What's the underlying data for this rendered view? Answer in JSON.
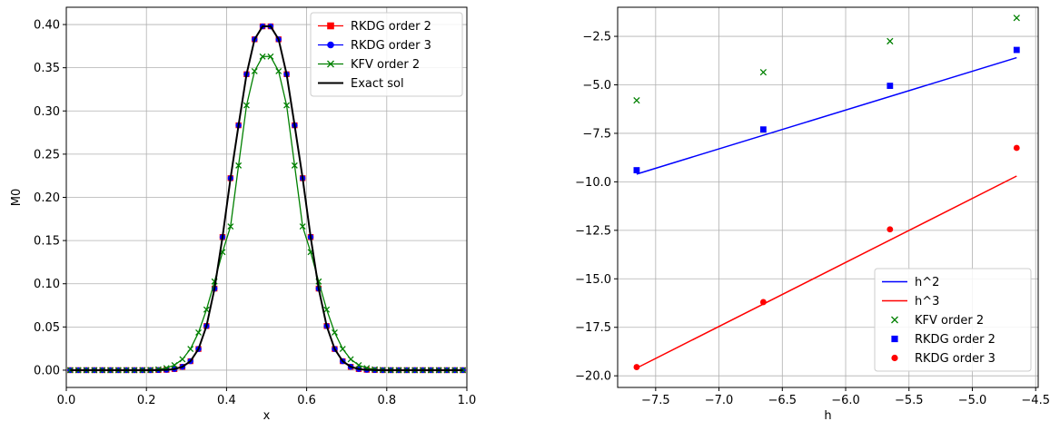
{
  "chart_data": [
    {
      "type": "line",
      "title": "",
      "xlabel": "x",
      "ylabel": "M0",
      "xlim": [
        0.0,
        1.0
      ],
      "ylim": [
        -0.02,
        0.42
      ],
      "xticks": [
        0.0,
        0.2,
        0.4,
        0.6,
        0.8,
        1.0
      ],
      "xtick_labels": [
        "0.0",
        "0.2",
        "0.4",
        "0.6",
        "0.8",
        "1.0"
      ],
      "yticks": [
        0.0,
        0.05,
        0.1,
        0.15,
        0.2,
        0.25,
        0.3,
        0.35,
        0.4
      ],
      "ytick_labels": [
        "0.00",
        "0.05",
        "0.10",
        "0.15",
        "0.20",
        "0.25",
        "0.30",
        "0.35",
        "0.40"
      ],
      "grid": true,
      "legend_position": "top-right",
      "x": [
        0.01,
        0.03,
        0.05,
        0.07,
        0.09,
        0.11,
        0.13,
        0.15,
        0.17,
        0.19,
        0.21,
        0.23,
        0.25,
        0.27,
        0.29,
        0.31,
        0.33,
        0.35,
        0.37,
        0.39,
        0.41,
        0.43,
        0.45,
        0.47,
        0.49,
        0.51,
        0.53,
        0.55,
        0.57,
        0.59,
        0.61,
        0.63,
        0.65,
        0.67,
        0.69,
        0.71,
        0.73,
        0.75,
        0.77,
        0.79,
        0.81,
        0.83,
        0.85,
        0.87,
        0.89,
        0.91,
        0.93,
        0.95,
        0.97,
        0.99
      ],
      "series": [
        {
          "name": "RKDG order 2",
          "color": "#ff0000",
          "marker": "square",
          "values": [
            0,
            0,
            0,
            0,
            0,
            0,
            0,
            0,
            0,
            0,
            0,
            0.0001,
            0.0004,
            0.0013,
            0.0039,
            0.0104,
            0.0245,
            0.0511,
            0.0944,
            0.1541,
            0.2222,
            0.2834,
            0.3425,
            0.3829,
            0.3979,
            0.3979,
            0.3829,
            0.3425,
            0.2834,
            0.2222,
            0.1541,
            0.0944,
            0.0511,
            0.0245,
            0.0104,
            0.0039,
            0.0013,
            0.0004,
            0.0001,
            0,
            0,
            0,
            0,
            0,
            0,
            0,
            0,
            0,
            0,
            0
          ]
        },
        {
          "name": "RKDG order 3",
          "color": "#0000ff",
          "marker": "circle",
          "values": [
            0,
            0,
            0,
            0,
            0,
            0,
            0,
            0,
            0,
            0,
            0,
            0.0001,
            0.0004,
            0.0013,
            0.0039,
            0.0104,
            0.0245,
            0.0511,
            0.0944,
            0.1541,
            0.2222,
            0.2834,
            0.3425,
            0.3829,
            0.3979,
            0.3979,
            0.3829,
            0.3425,
            0.2834,
            0.2222,
            0.1541,
            0.0944,
            0.0511,
            0.0245,
            0.0104,
            0.0039,
            0.0013,
            0.0004,
            0.0001,
            0,
            0,
            0,
            0,
            0,
            0,
            0,
            0,
            0,
            0,
            0
          ]
        },
        {
          "name": "KFV order 2",
          "color": "#008000",
          "marker": "x",
          "values": [
            0,
            0,
            0,
            0,
            0,
            0,
            0,
            0,
            0,
            0.0001,
            0.0003,
            0.0009,
            0.0024,
            0.0058,
            0.0126,
            0.0246,
            0.0436,
            0.0701,
            0.1026,
            0.1367,
            0.1663,
            0.2369,
            0.3065,
            0.346,
            0.363,
            0.363,
            0.346,
            0.3065,
            0.2369,
            0.1663,
            0.1367,
            0.1026,
            0.0701,
            0.0436,
            0.0246,
            0.0126,
            0.0058,
            0.0024,
            0.0009,
            0.0003,
            0.0001,
            0,
            0,
            0,
            0,
            0,
            0,
            0,
            0,
            0
          ]
        },
        {
          "name": "Exact sol",
          "color": "#000000",
          "marker": "none",
          "values": [
            0,
            0,
            0,
            0,
            0,
            0,
            0,
            0,
            0,
            0,
            0,
            0.0001,
            0.0004,
            0.0013,
            0.0039,
            0.0104,
            0.0245,
            0.0511,
            0.0944,
            0.1541,
            0.2222,
            0.2834,
            0.3425,
            0.3829,
            0.3979,
            0.3979,
            0.3829,
            0.3425,
            0.2834,
            0.2222,
            0.1541,
            0.0944,
            0.0511,
            0.0245,
            0.0104,
            0.0039,
            0.0013,
            0.0004,
            0.0001,
            0,
            0,
            0,
            0,
            0,
            0,
            0,
            0,
            0,
            0,
            0
          ]
        }
      ]
    },
    {
      "type": "scatter",
      "title": "",
      "xlabel": "h",
      "ylabel": "",
      "xlim": [
        -7.8,
        -4.48
      ],
      "ylim": [
        -20.6,
        -1.0
      ],
      "xticks": [
        -7.5,
        -7.0,
        -6.5,
        -6.0,
        -5.5,
        -5.0,
        -4.5
      ],
      "xtick_labels": [
        "−7.5",
        "−7.0",
        "−6.5",
        "−6.0",
        "−5.5",
        "−5.0",
        "−4.5"
      ],
      "yticks": [
        -20.0,
        -17.5,
        -15.0,
        -12.5,
        -10.0,
        -7.5,
        -5.0,
        -2.5
      ],
      "ytick_labels": [
        "−20.0",
        "−17.5",
        "−15.0",
        "−12.5",
        "−10.0",
        "−7.5",
        "−5.0",
        "−2.5"
      ],
      "grid": true,
      "legend_position": "bottom-right",
      "lines": [
        {
          "name": "h^2",
          "color": "#0000ff",
          "x": [
            -7.65,
            -4.65
          ],
          "y": [
            -9.6,
            -3.6
          ]
        },
        {
          "name": "h^3",
          "color": "#ff0000",
          "x": [
            -7.65,
            -4.65
          ],
          "y": [
            -19.6,
            -9.7
          ]
        }
      ],
      "series": [
        {
          "name": "KFV order 2",
          "color": "#008000",
          "marker": "x",
          "x": [
            -7.65,
            -6.65,
            -5.65,
            -4.65
          ],
          "y": [
            -5.8,
            -4.35,
            -2.75,
            -1.55
          ]
        },
        {
          "name": "RKDG order 2",
          "color": "#0000ff",
          "marker": "square",
          "x": [
            -7.65,
            -6.65,
            -5.65,
            -4.65
          ],
          "y": [
            -9.4,
            -7.3,
            -5.05,
            -3.2
          ]
        },
        {
          "name": "RKDG order 3",
          "color": "#ff0000",
          "marker": "circle",
          "x": [
            -7.65,
            -6.65,
            -5.65,
            -4.65
          ],
          "y": [
            -19.55,
            -16.2,
            -12.45,
            -8.25
          ]
        }
      ]
    }
  ]
}
